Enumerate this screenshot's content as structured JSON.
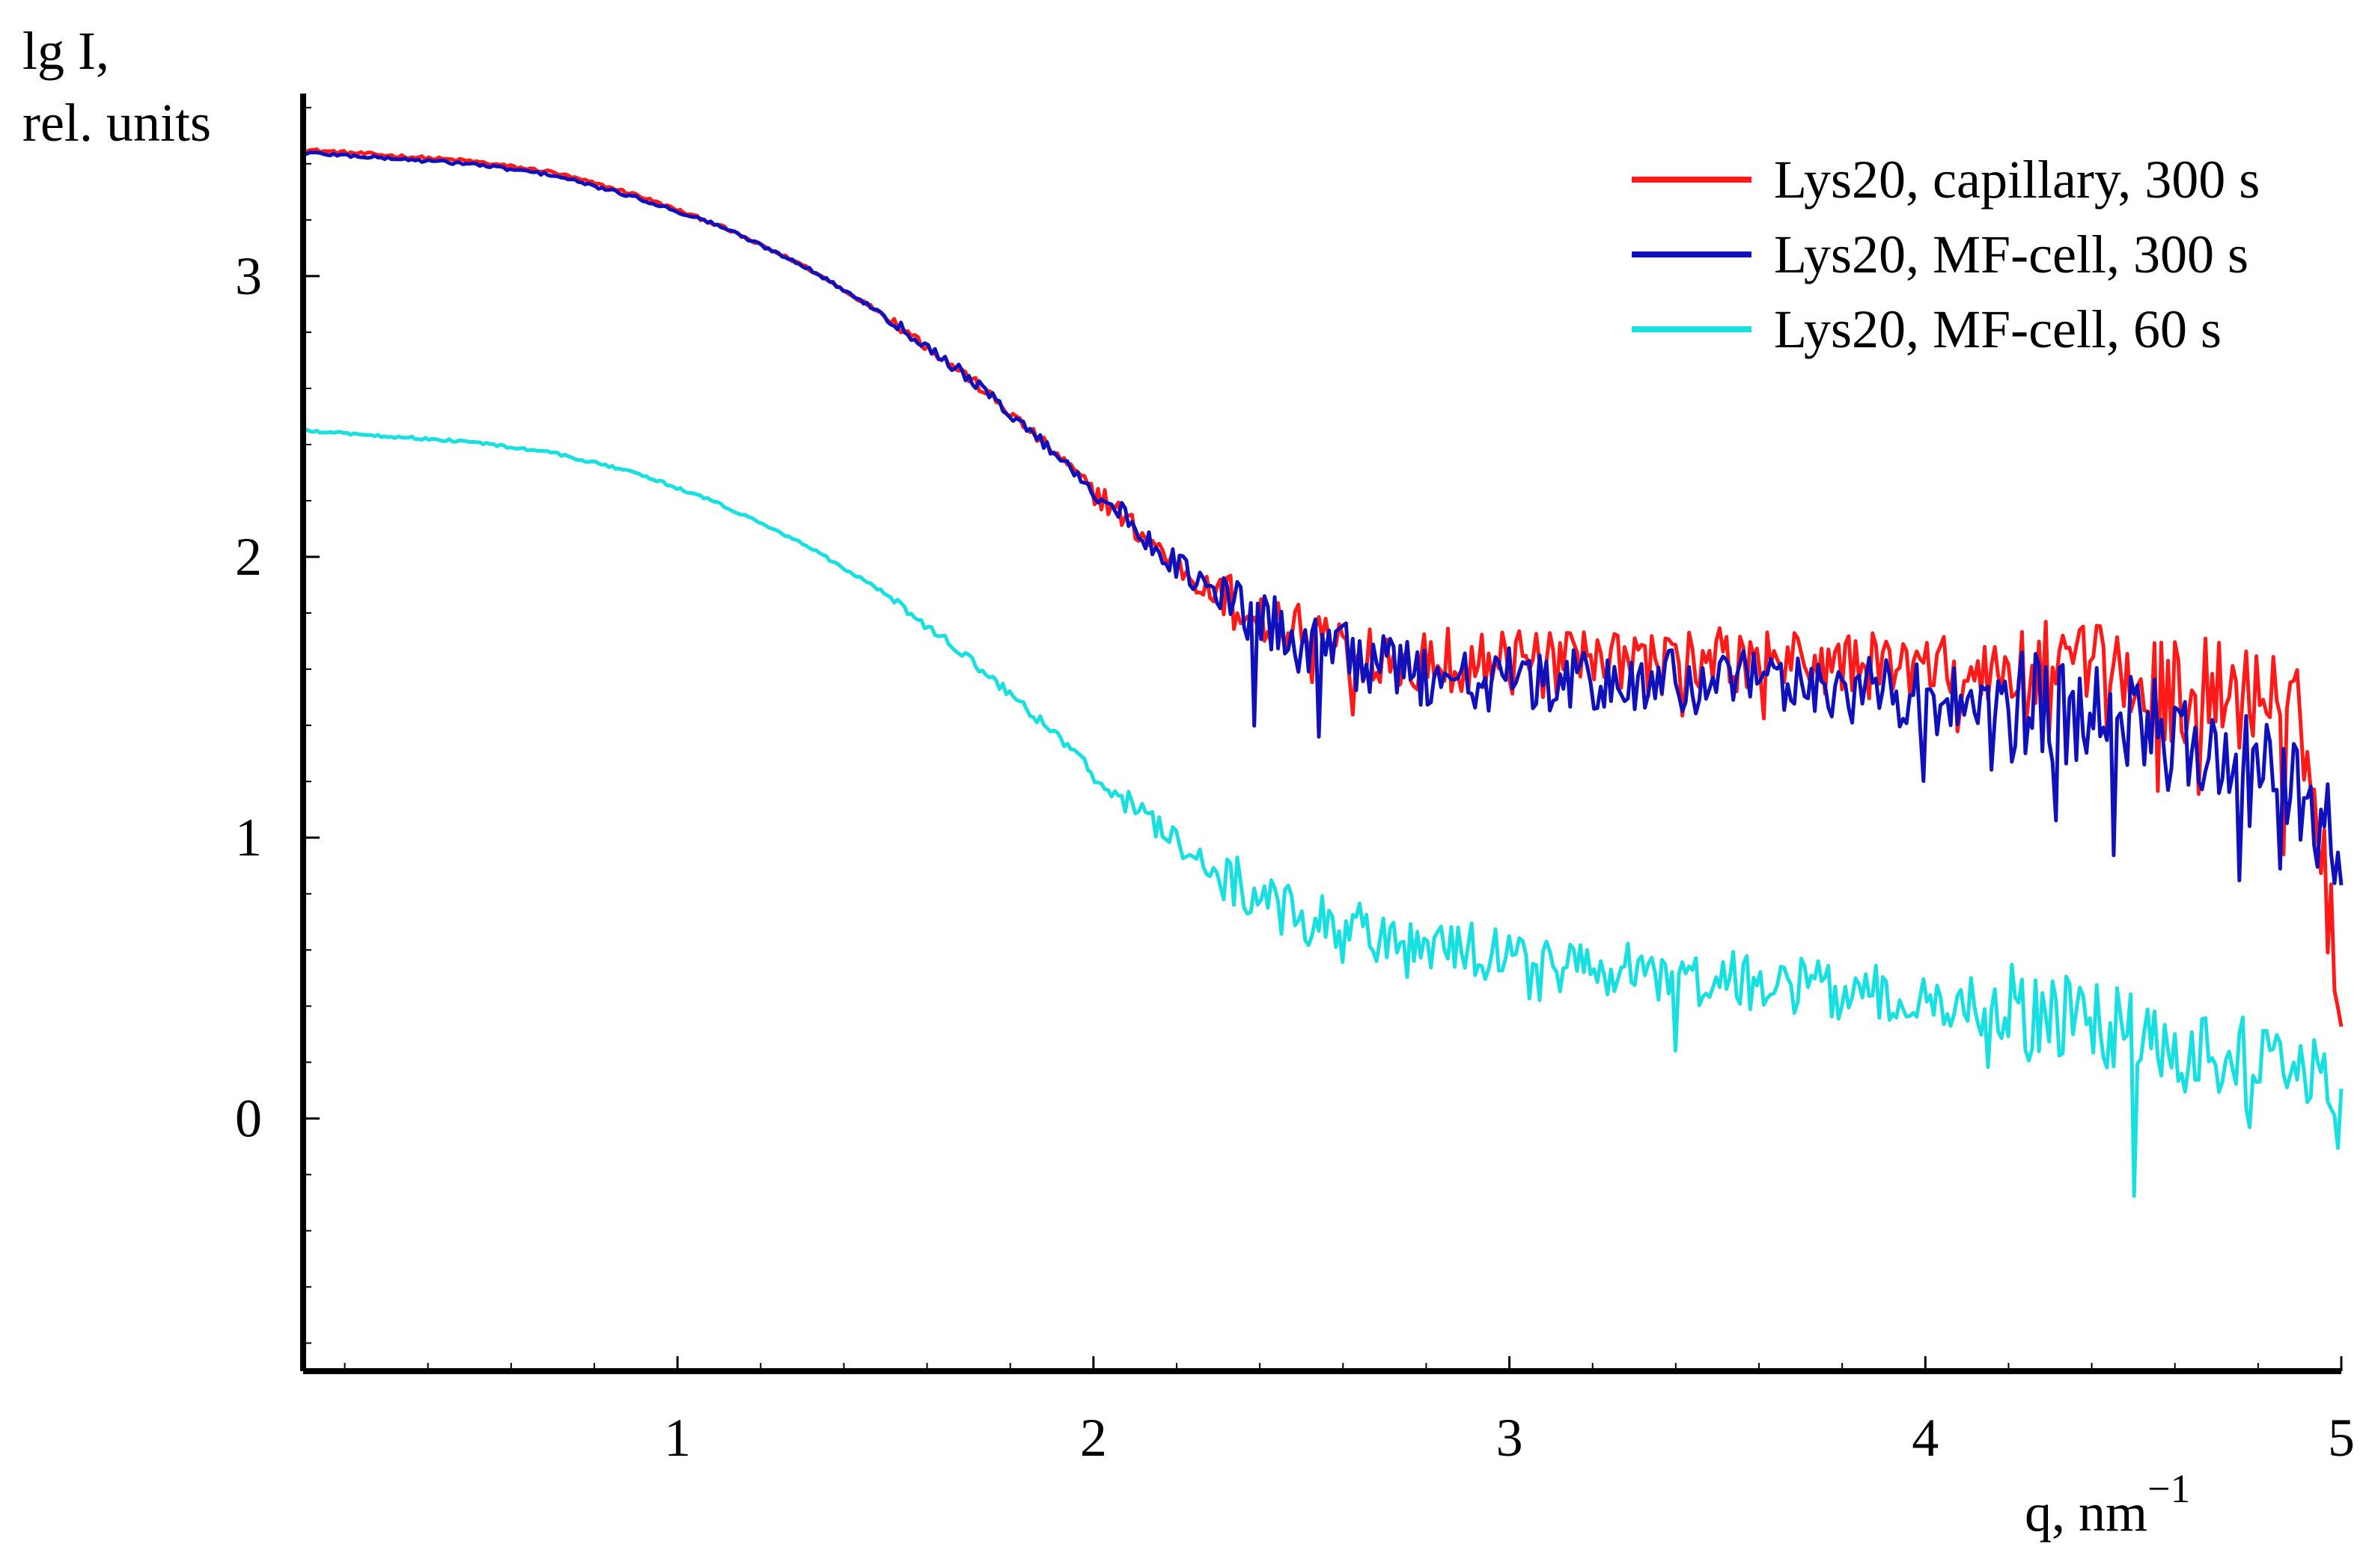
{
  "chart_data": {
    "type": "line",
    "ylabel_line1": "lg I,",
    "ylabel_line2": "rel. units",
    "xlabel_base": "q, nm",
    "xlabel_sup": "−1",
    "xlim": [
      0.1,
      5.0
    ],
    "ylim": [
      -0.9,
      3.65
    ],
    "x_ticks": [
      1,
      2,
      3,
      4,
      5
    ],
    "x_tick_labels": [
      "1",
      "2",
      "3",
      "4",
      "5"
    ],
    "y_ticks": [
      0,
      1,
      2,
      3
    ],
    "y_tick_labels": [
      "0",
      "1",
      "2",
      "3"
    ],
    "x_minor_step": 0.2,
    "y_minor_step": 0.2,
    "grid": false,
    "legend_position": "top-right",
    "series": [
      {
        "name": "Lys20, capillary, 300 s",
        "color": "#ff1a1a",
        "noise": "high",
        "x": [
          0.1,
          0.3,
          0.5,
          0.7,
          0.9,
          1.1,
          1.3,
          1.5,
          1.7,
          1.9,
          2.1,
          2.3,
          2.5,
          2.7,
          2.9,
          3.1,
          3.3,
          3.5,
          3.7,
          3.9,
          4.1,
          4.3,
          4.5,
          4.7,
          4.9,
          5.0
        ],
        "y": [
          3.45,
          3.43,
          3.41,
          3.37,
          3.29,
          3.18,
          3.04,
          2.86,
          2.64,
          2.38,
          2.1,
          1.85,
          1.72,
          1.66,
          1.63,
          1.61,
          1.62,
          1.63,
          1.62,
          1.61,
          1.59,
          1.57,
          1.55,
          1.52,
          1.47,
          0.45
        ]
      },
      {
        "name": "Lys20, MF-cell, 300 s",
        "color": "#1111bb",
        "noise": "high",
        "x": [
          0.1,
          0.3,
          0.5,
          0.7,
          0.9,
          1.1,
          1.3,
          1.5,
          1.7,
          1.9,
          2.1,
          2.3,
          2.5,
          2.7,
          2.9,
          3.1,
          3.3,
          3.5,
          3.7,
          3.9,
          4.1,
          4.3,
          4.5,
          4.7,
          4.9,
          5.0
        ],
        "y": [
          3.44,
          3.42,
          3.4,
          3.36,
          3.28,
          3.18,
          3.04,
          2.86,
          2.64,
          2.38,
          2.1,
          1.85,
          1.7,
          1.6,
          1.57,
          1.55,
          1.55,
          1.55,
          1.54,
          1.52,
          1.48,
          1.45,
          1.4,
          1.3,
          1.15,
          1.0
        ]
      },
      {
        "name": "Lys20, MF-cell, 60 s",
        "color": "#19e0e0",
        "noise": "medium",
        "x": [
          0.1,
          0.3,
          0.5,
          0.7,
          0.9,
          1.1,
          1.3,
          1.5,
          1.7,
          1.9,
          2.1,
          2.3,
          2.5,
          2.7,
          2.9,
          3.1,
          3.3,
          3.5,
          3.7,
          3.9,
          4.1,
          4.3,
          4.5,
          4.7,
          4.9,
          5.0
        ],
        "y": [
          2.45,
          2.43,
          2.41,
          2.37,
          2.3,
          2.19,
          2.05,
          1.87,
          1.64,
          1.38,
          1.1,
          0.87,
          0.72,
          0.64,
          0.6,
          0.55,
          0.52,
          0.5,
          0.47,
          0.44,
          0.4,
          0.36,
          0.3,
          0.22,
          0.18,
          0.0
        ]
      }
    ]
  }
}
